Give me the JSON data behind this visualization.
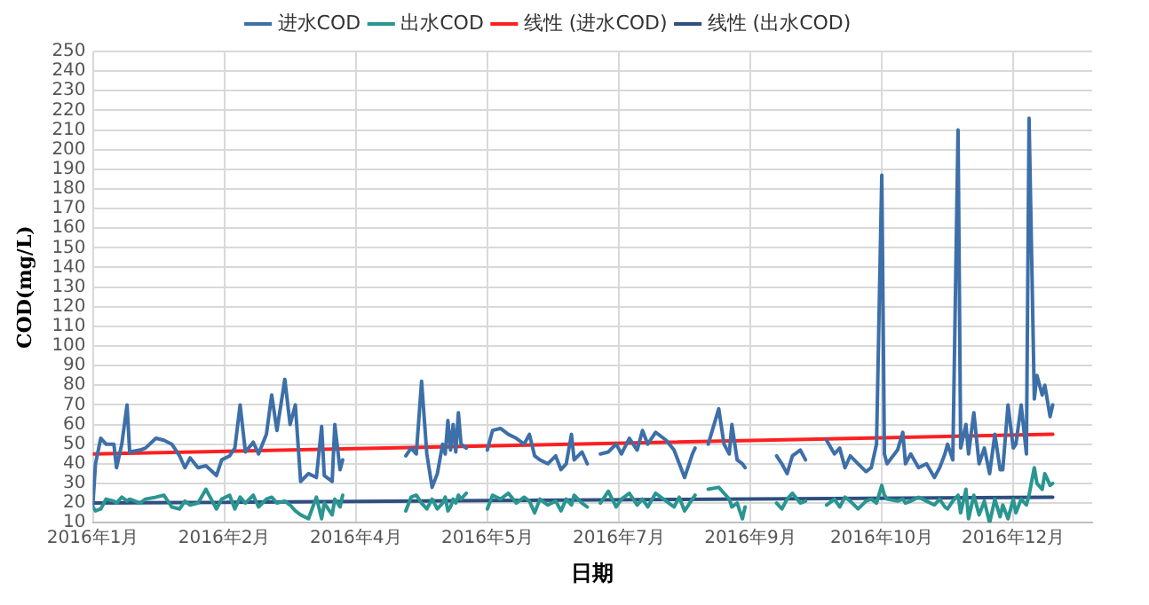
{
  "chart_data": {
    "type": "line",
    "xlabel": "日期",
    "ylabel": "COD(mg/L)",
    "legend": "top",
    "grid": true,
    "marker": "none",
    "line_style": "solid",
    "xlim": [
      "2016-01-01",
      "2017-01-15"
    ],
    "xticks": [
      {
        "value": "2016-01-01",
        "label": "2016年1月"
      },
      {
        "value": "2016-02-20",
        "label": "2016年2月"
      },
      {
        "value": "2016-04-10",
        "label": "2016年4月"
      },
      {
        "value": "2016-05-30",
        "label": "2016年5月"
      },
      {
        "value": "2016-07-19",
        "label": "2016年7月"
      },
      {
        "value": "2016-09-07",
        "label": "2016年9月"
      },
      {
        "value": "2016-10-27",
        "label": "2016年10月"
      },
      {
        "value": "2016-12-16",
        "label": "2016年12月"
      }
    ],
    "ylim": [
      10,
      250
    ],
    "yticks": [
      10,
      20,
      30,
      40,
      50,
      60,
      70,
      80,
      90,
      100,
      110,
      120,
      130,
      140,
      150,
      160,
      170,
      180,
      190,
      200,
      210,
      220,
      230,
      240,
      250
    ],
    "x": [
      "2016-01-01",
      "2016-01-02",
      "2016-01-04",
      "2016-01-06",
      "2016-01-09",
      "2016-01-10",
      "2016-01-12",
      "2016-01-14",
      "2016-01-15",
      "2016-01-19",
      "2016-01-21",
      "2016-01-25",
      "2016-01-28",
      "2016-01-31",
      "2016-02-03",
      "2016-02-05",
      "2016-02-07",
      "2016-02-10",
      "2016-02-13",
      "2016-02-17",
      "2016-02-19",
      "2016-02-22",
      "2016-02-24",
      "2016-02-26",
      "2016-02-28",
      "2016-03-02",
      "2016-03-04",
      "2016-03-07",
      "2016-03-09",
      "2016-03-11",
      "2016-03-14",
      "2016-03-16",
      "2016-03-18",
      "2016-03-20",
      "2016-03-23",
      "2016-03-26",
      "2016-03-28",
      "2016-03-29",
      "2016-04-01",
      "2016-04-02",
      "2016-04-04",
      "2016-04-05",
      "2016-04-17",
      "2016-04-29",
      "2016-05-01",
      "2016-05-03",
      "2016-05-05",
      "2016-05-07",
      "2016-05-09",
      "2016-05-11",
      "2016-05-13",
      "2016-05-14",
      "2016-05-15",
      "2016-05-16",
      "2016-05-17",
      "2016-05-18",
      "2016-05-19",
      "2016-05-20",
      "2016-05-22",
      "2016-05-25",
      "2016-05-30",
      "2016-06-01",
      "2016-06-04",
      "2016-06-07",
      "2016-06-10",
      "2016-06-13",
      "2016-06-15",
      "2016-06-17",
      "2016-06-19",
      "2016-06-22",
      "2016-06-25",
      "2016-06-27",
      "2016-06-29",
      "2016-07-01",
      "2016-07-02",
      "2016-07-05",
      "2016-07-07",
      "2016-07-09",
      "2016-07-12",
      "2016-07-15",
      "2016-07-18",
      "2016-07-20",
      "2016-07-23",
      "2016-07-26",
      "2016-07-28",
      "2016-07-30",
      "2016-08-02",
      "2016-08-06",
      "2016-08-09",
      "2016-08-11",
      "2016-08-13",
      "2016-08-16",
      "2016-08-17",
      "2016-08-19",
      "2016-08-22",
      "2016-08-26",
      "2016-08-28",
      "2016-08-30",
      "2016-08-31",
      "2016-09-02",
      "2016-09-04",
      "2016-09-05",
      "2016-09-11",
      "2016-09-17",
      "2016-09-19",
      "2016-09-21",
      "2016-09-23",
      "2016-09-26",
      "2016-09-28",
      "2016-10-02",
      "2016-10-06",
      "2016-10-09",
      "2016-10-11",
      "2016-10-13",
      "2016-10-15",
      "2016-10-18",
      "2016-10-21",
      "2016-10-23",
      "2016-10-25",
      "2016-10-27",
      "2016-10-28",
      "2016-10-29",
      "2016-11-02",
      "2016-11-04",
      "2016-11-05",
      "2016-11-07",
      "2016-11-10",
      "2016-11-13",
      "2016-11-16",
      "2016-11-18",
      "2016-11-20",
      "2016-11-21",
      "2016-11-23",
      "2016-11-25",
      "2016-11-26",
      "2016-11-28",
      "2016-11-29",
      "2016-12-01",
      "2016-12-03",
      "2016-12-05",
      "2016-12-07",
      "2016-12-09",
      "2016-12-11",
      "2016-12-12",
      "2016-12-14",
      "2016-12-16",
      "2016-12-17",
      "2016-12-19",
      "2016-12-21",
      "2016-12-22",
      "2016-12-24",
      "2016-12-25",
      "2016-12-27",
      "2016-12-28",
      "2016-12-30",
      "2016-12-31"
    ],
    "series": [
      {
        "name": "进水COD",
        "color": "#3d6fa8",
        "values": [
          19,
          40,
          53,
          50,
          50,
          38,
          50,
          70,
          46,
          47,
          48,
          53,
          52,
          50,
          44,
          38,
          43,
          38,
          39,
          34,
          42,
          44,
          48,
          70,
          46,
          51,
          45,
          55,
          75,
          57,
          83,
          60,
          70,
          31,
          35,
          33,
          59,
          34,
          31,
          60,
          37,
          42,
          null,
          44,
          48,
          45,
          82,
          45,
          28,
          35,
          50,
          45,
          62,
          47,
          60,
          46,
          66,
          50,
          48,
          null,
          47,
          57,
          58,
          55,
          53,
          50,
          55,
          44,
          42,
          40,
          44,
          37,
          40,
          55,
          42,
          46,
          40,
          null,
          45,
          46,
          50,
          45,
          53,
          47,
          57,
          50,
          56,
          52,
          47,
          40,
          33,
          45,
          48,
          null,
          50,
          68,
          50,
          45,
          60,
          42,
          40,
          38,
          null,
          44,
          40,
          35,
          44,
          47,
          42,
          null,
          52,
          45,
          48,
          38,
          44,
          40,
          36,
          38,
          50,
          187,
          45,
          40,
          47,
          56,
          40,
          45,
          38,
          40,
          33,
          38,
          45,
          50,
          42,
          210,
          48,
          60,
          45,
          66,
          40,
          48,
          35,
          55,
          37,
          37,
          70,
          48,
          50,
          70,
          45,
          216,
          73,
          85,
          75,
          80,
          64,
          70
        ]
      },
      {
        "name": "出水COD",
        "color": "#2a9591",
        "values": [
          18,
          16,
          17,
          22,
          21,
          20,
          23,
          21,
          22,
          20,
          22,
          23,
          24,
          18,
          17,
          21,
          19,
          20,
          27,
          17,
          22,
          24,
          17,
          23,
          20,
          24,
          18,
          22,
          23,
          20,
          21,
          19,
          16,
          14,
          12,
          23,
          12,
          20,
          14,
          22,
          18,
          24,
          null,
          16,
          23,
          24,
          20,
          17,
          22,
          17,
          20,
          23,
          16,
          18,
          22,
          20,
          24,
          22,
          25,
          null,
          17,
          24,
          22,
          25,
          20,
          23,
          21,
          15,
          22,
          19,
          21,
          16,
          22,
          19,
          24,
          20,
          18,
          null,
          20,
          26,
          18,
          22,
          25,
          19,
          22,
          18,
          25,
          21,
          18,
          23,
          16,
          22,
          24,
          null,
          27,
          28,
          25,
          22,
          18,
          20,
          12,
          18,
          null,
          20,
          17,
          22,
          25,
          20,
          21,
          null,
          19,
          22,
          18,
          23,
          21,
          17,
          21,
          22,
          20,
          29,
          24,
          22,
          21,
          22,
          20,
          21,
          23,
          21,
          19,
          22,
          18,
          17,
          21,
          24,
          15,
          27,
          12,
          24,
          14,
          21,
          10,
          22,
          13,
          19,
          12,
          22,
          15,
          22,
          19,
          24,
          38,
          30,
          27,
          35,
          29,
          30
        ]
      },
      {
        "name": "线性 (进水COD)",
        "type": "line",
        "color": "#ff2020",
        "x": [
          "2016-01-01",
          "2016-12-31"
        ],
        "values": [
          45,
          55
        ]
      },
      {
        "name": "线性 (出水COD)",
        "type": "line",
        "color": "#2e4f7f",
        "x": [
          "2016-01-01",
          "2016-12-31"
        ],
        "values": [
          20,
          23
        ]
      }
    ]
  }
}
